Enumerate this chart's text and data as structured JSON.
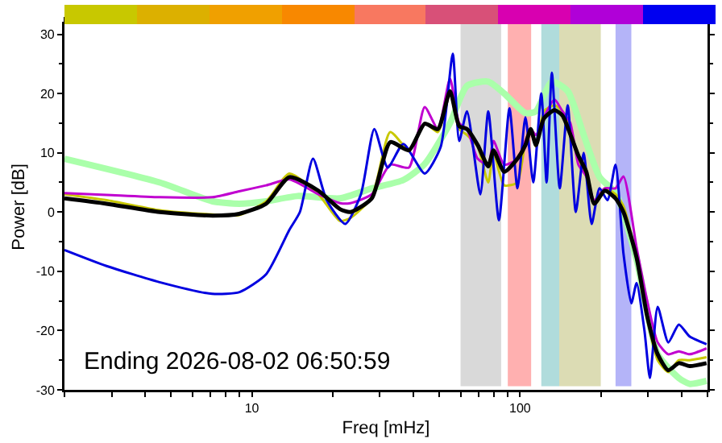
{
  "chart_data": {
    "type": "line",
    "xlabel": "Freq [mHz]",
    "ylabel": "Power [dB]",
    "log": "x",
    "grid": false,
    "marker": "none",
    "xlim": [
      2,
      500
    ],
    "xticks": [
      {
        "value": 2,
        "label": null
      },
      {
        "value": 3,
        "label": null
      },
      {
        "value": 4,
        "label": null
      },
      {
        "value": 5,
        "label": null
      },
      {
        "value": 6,
        "label": null
      },
      {
        "value": 7,
        "label": null
      },
      {
        "value": 8,
        "label": null
      },
      {
        "value": 9,
        "label": null
      },
      10,
      {
        "value": 20,
        "label": null
      },
      {
        "value": 30,
        "label": null
      },
      {
        "value": 40,
        "label": null
      },
      {
        "value": 50,
        "label": null
      },
      {
        "value": 60,
        "label": null
      },
      {
        "value": 70,
        "label": null
      },
      {
        "value": 80,
        "label": null
      },
      {
        "value": 90,
        "label": null
      },
      100,
      {
        "value": 200,
        "label": null
      },
      {
        "value": 300,
        "label": null
      },
      {
        "value": 400,
        "label": null
      },
      {
        "value": 500,
        "label": null
      }
    ],
    "ylim": [
      -30,
      31.7
    ],
    "yticks": [
      -30,
      -20,
      -10,
      0,
      10,
      20,
      30
    ],
    "annotations": [
      "Ending 2026-08-02 06:50:59"
    ],
    "bands": [
      {
        "axis": "x",
        "from": 60,
        "to": 85,
        "color": "#d9d9d9"
      },
      {
        "axis": "x",
        "from": 90,
        "to": 110,
        "color": "#ffb0b0"
      },
      {
        "axis": "x",
        "from": 120,
        "to": 140,
        "color": "#b0dcdc"
      },
      {
        "axis": "x",
        "from": 140,
        "to": 200,
        "color": "#dcdcb4"
      },
      {
        "axis": "x",
        "from": 227,
        "to": 260,
        "color": "#b4b4f8"
      }
    ],
    "series": [
      {
        "color": "#aaffaa",
        "x": [
          2,
          4.53,
          7.14,
          8.97,
          11.3,
          14.8,
          21.3,
          28,
          36.7,
          44.1,
          54.8,
          63.4,
          76.1,
          87.3,
          104.7,
          114.6,
          131.4,
          150.6,
          172.7,
          197.9,
          227,
          272,
          326,
          391,
          429,
          496
        ],
        "values": [
          9,
          5,
          1.8,
          1.4,
          1.8,
          2.7,
          2.3,
          4,
          5.4,
          8.1,
          15,
          21.3,
          22,
          20,
          16.7,
          17,
          22,
          20.4,
          13,
          5.9,
          3.2,
          -8,
          -24,
          -28,
          -29,
          -28.5
        ]
      },
      {
        "color": "#c8c800",
        "x": [
          2,
          2.87,
          4.53,
          7.14,
          8.97,
          11.3,
          13.8,
          17.7,
          21.3,
          23.3,
          28,
          32.8,
          38.5,
          44.1,
          49.4,
          54.8,
          59.3,
          63.4,
          69.5,
          76.1,
          79.6,
          87.3,
          97.8,
          104.7,
          109.6,
          114.6,
          122.7,
          134.4,
          143.9,
          154,
          165,
          176.6,
          189,
          207,
          227,
          243,
          272,
          298,
          326,
          357,
          391,
          429,
          496
        ],
        "values": [
          3,
          2,
          0.3,
          -0.4,
          -0.5,
          1.8,
          6.5,
          3,
          -1.5,
          -1,
          2.5,
          13.5,
          10.5,
          15,
          13.5,
          20,
          14,
          13,
          11,
          5,
          10,
          4.5,
          5,
          12,
          14,
          11,
          17,
          18,
          17,
          14,
          9,
          6,
          2,
          4,
          3,
          1,
          -8,
          -18,
          -25,
          -27,
          -25,
          -25,
          -24.5
        ]
      },
      {
        "color": "#c000d0",
        "x": [
          2,
          2.87,
          4.53,
          7.14,
          8.97,
          11.3,
          13.8,
          17.7,
          21.3,
          23.3,
          28,
          32.8,
          38.5,
          44.1,
          49.4,
          54.8,
          59.3,
          63.4,
          69.5,
          76.1,
          79.6,
          87.3,
          97.8,
          104.7,
          109.6,
          114.6,
          122.7,
          134.4,
          143.9,
          154,
          165,
          176.6,
          189,
          207,
          227,
          243,
          272,
          298,
          326,
          357,
          391,
          429,
          496
        ],
        "values": [
          3.2,
          2.9,
          2.5,
          2.5,
          3.5,
          4.5,
          5.5,
          3,
          1.5,
          1.5,
          3,
          8,
          7.5,
          17.7,
          14,
          22.5,
          15,
          14,
          9,
          8,
          12,
          8,
          9,
          12,
          14,
          13,
          16,
          19,
          17,
          15,
          8,
          6,
          2,
          4,
          4,
          6,
          -6,
          -15,
          -22,
          -24,
          -23.5,
          -24,
          -23
        ]
      },
      {
        "color": "#0000e0",
        "x": [
          2,
          2.87,
          4.5,
          7.1,
          9,
          11.3,
          13.8,
          15.1,
          16.9,
          19,
          22.3,
          25.5,
          28.6,
          32.1,
          36.7,
          44.1,
          50.6,
          56.1,
          59.3,
          63.4,
          71.1,
          76.1,
          83.4,
          91.3,
          97.8,
          104.7,
          112,
          120,
          125.6,
          131.4,
          140.6,
          150.6,
          161.4,
          172.7,
          184.9,
          197.9,
          211.8,
          227,
          243,
          260,
          272,
          291,
          305,
          326,
          357,
          391,
          429,
          496
        ],
        "values": [
          -6.4,
          -9.1,
          -11.8,
          -13.8,
          -13.5,
          -10.5,
          -3,
          0,
          9,
          2,
          -2,
          3,
          14,
          7.5,
          11.5,
          6.5,
          11,
          26.7,
          12,
          17,
          3,
          17,
          -1.4,
          17.5,
          4,
          16,
          5,
          20,
          5,
          23.5,
          4,
          18,
          0,
          10,
          -2,
          4,
          2,
          8,
          -7,
          -15.4,
          -12,
          -20,
          -28,
          -16,
          -22,
          -19,
          -21,
          -22.3
        ]
      },
      {
        "color": "#000000",
        "x": [
          2,
          2.87,
          4.53,
          7.14,
          8.97,
          11.3,
          13.8,
          17.7,
          21.3,
          23.3,
          28,
          32.8,
          38.5,
          44.1,
          49.4,
          54.8,
          59.3,
          63.4,
          69.5,
          76.1,
          79.6,
          87.3,
          97.8,
          104.7,
          109.6,
          114.6,
          122.7,
          134.4,
          143.9,
          154,
          165,
          176.6,
          189,
          207,
          227,
          243,
          272,
          298,
          326,
          357,
          391,
          429,
          496
        ],
        "values": [
          2.3,
          1.4,
          0,
          -0.6,
          -0.3,
          1.4,
          5.9,
          3.6,
          0.5,
          0,
          2.3,
          11.8,
          10.4,
          14.9,
          14,
          20.4,
          14.5,
          14,
          11.3,
          7.7,
          10.4,
          6.8,
          9,
          11.3,
          14,
          11.3,
          15.8,
          17.2,
          16.3,
          13.1,
          9.5,
          6.8,
          1.4,
          3.6,
          2.3,
          0,
          -7.7,
          -17.6,
          -24,
          -26.7,
          -25.5,
          -26,
          -25.5
        ]
      }
    ]
  }
}
